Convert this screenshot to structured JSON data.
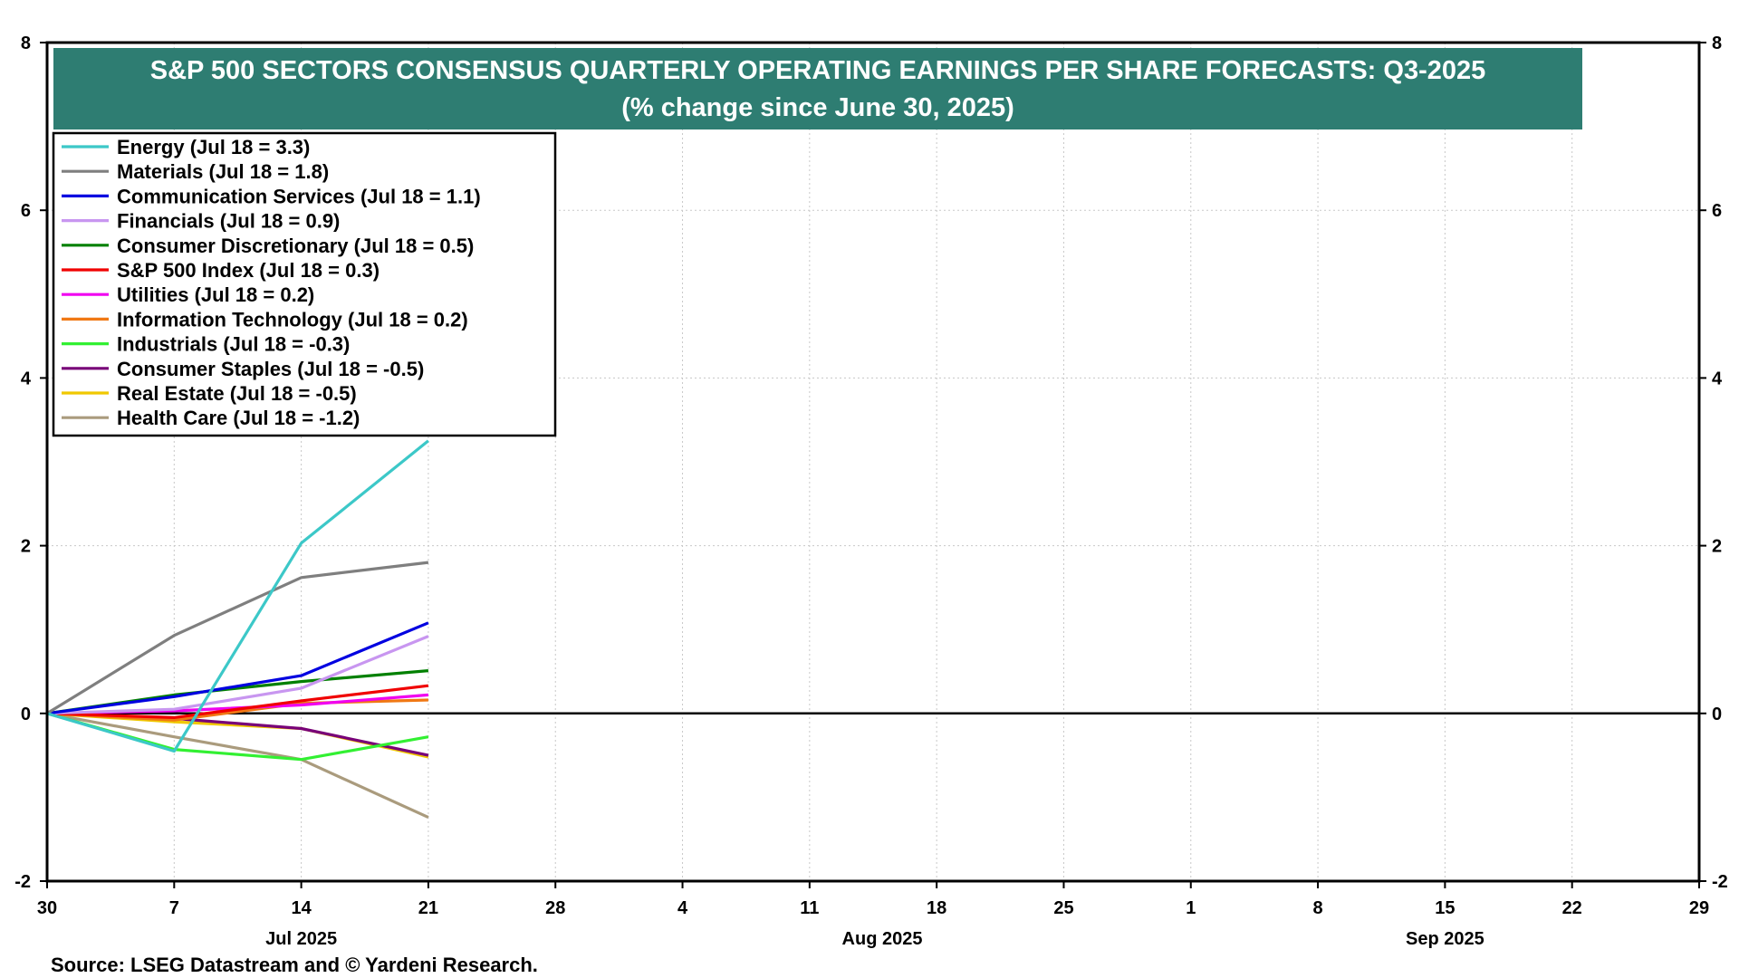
{
  "chart_data": {
    "type": "line",
    "title": "S&P 500 SECTORS CONSENSUS QUARTERLY OPERATING EARNINGS PER SHARE FORECASTS: Q3-2025",
    "subtitle": "(% change since June 30, 2025)",
    "source": "Source: LSEG Datastream and © Yardeni Research.",
    "ylim": [
      -2,
      8
    ],
    "y_ticks": [
      -2,
      0,
      2,
      4,
      6,
      8
    ],
    "y_tick_labels": [
      "-2",
      "0",
      "2",
      "4",
      "6",
      "8"
    ],
    "x_dates": [
      "2025-06-30",
      "2025-07-07",
      "2025-07-14",
      "2025-07-21"
    ],
    "x_range": [
      "2025-06-30",
      "2025-09-29"
    ],
    "x_ticks": [
      {
        "date": "2025-06-30",
        "label": "30"
      },
      {
        "date": "2025-07-07",
        "label": "7"
      },
      {
        "date": "2025-07-14",
        "label": "14"
      },
      {
        "date": "2025-07-21",
        "label": "21"
      },
      {
        "date": "2025-07-28",
        "label": "28"
      },
      {
        "date": "2025-08-04",
        "label": "4"
      },
      {
        "date": "2025-08-11",
        "label": "11"
      },
      {
        "date": "2025-08-18",
        "label": "18"
      },
      {
        "date": "2025-08-25",
        "label": "25"
      },
      {
        "date": "2025-09-01",
        "label": "1"
      },
      {
        "date": "2025-09-08",
        "label": "8"
      },
      {
        "date": "2025-09-15",
        "label": "15"
      },
      {
        "date": "2025-09-22",
        "label": "22"
      },
      {
        "date": "2025-09-29",
        "label": "29"
      }
    ],
    "month_labels": [
      {
        "date": "2025-07-14",
        "label": "Jul 2025"
      },
      {
        "date": "2025-08-15",
        "label": "Aug 2025"
      },
      {
        "date": "2025-09-15",
        "label": "Sep 2025"
      }
    ],
    "grid": true,
    "legend_position": "top-left",
    "zero_line": true,
    "series": [
      {
        "name": "Energy (Jul 18 = 3.3)",
        "color": "#3CC8C8",
        "values": [
          0,
          -0.45,
          2.03,
          3.25
        ]
      },
      {
        "name": "Materials (Jul 18 = 1.8)",
        "color": "#7F7F7F",
        "values": [
          0,
          0.93,
          1.62,
          1.8
        ]
      },
      {
        "name": "Communication Services (Jul 18 = 1.1)",
        "color": "#0000E0",
        "values": [
          0,
          0.2,
          0.45,
          1.08
        ]
      },
      {
        "name": "Financials (Jul 18 = 0.9)",
        "color": "#C896F0",
        "values": [
          0,
          0.05,
          0.3,
          0.92
        ]
      },
      {
        "name": "Consumer Discretionary (Jul 18 = 0.5)",
        "color": "#008000",
        "values": [
          0,
          0.22,
          0.38,
          0.51
        ]
      },
      {
        "name": "S&P 500 Index (Jul 18 = 0.3)",
        "color": "#F00000",
        "values": [
          0,
          -0.05,
          0.15,
          0.33
        ]
      },
      {
        "name": "Utilities (Jul 18 = 0.2)",
        "color": "#F000F0",
        "values": [
          0,
          0.03,
          0.1,
          0.22
        ]
      },
      {
        "name": "Information Technology (Jul 18 = 0.2)",
        "color": "#F07814",
        "values": [
          0,
          -0.08,
          0.12,
          0.16
        ]
      },
      {
        "name": "Industrials (Jul 18 = -0.3)",
        "color": "#32F032",
        "values": [
          0,
          -0.43,
          -0.55,
          -0.28
        ]
      },
      {
        "name": "Consumer Staples (Jul 18 = -0.5)",
        "color": "#780078",
        "values": [
          0,
          -0.06,
          -0.18,
          -0.5
        ]
      },
      {
        "name": "Real Estate (Jul 18 = -0.5)",
        "color": "#F0C800",
        "values": [
          0,
          -0.1,
          -0.18,
          -0.52
        ]
      },
      {
        "name": "Health Care (Jul 18 = -1.2)",
        "color": "#AA9B7D",
        "values": [
          0,
          -0.28,
          -0.55,
          -1.24
        ]
      }
    ],
    "colors": {
      "title_bg": "#2E7D72",
      "title_text": "#FFFFFF",
      "grid": "#C8C8C8",
      "axis": "#000000"
    }
  }
}
